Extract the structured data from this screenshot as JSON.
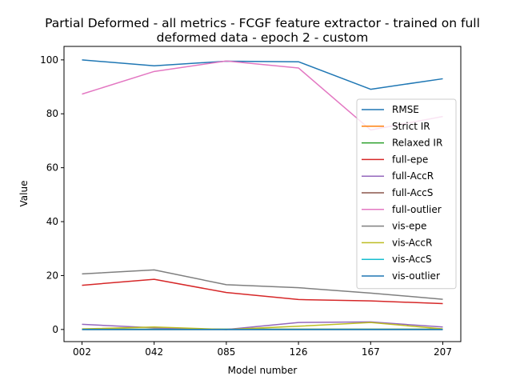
{
  "chart_data": {
    "type": "line",
    "title": [
      "Partial Deformed - all metrics - FCGF feature extractor -  trained on full",
      "deformed data -  epoch 2 - custom"
    ],
    "xlabel": "Model number",
    "ylabel": "Value",
    "categories": [
      "002",
      "042",
      "085",
      "126",
      "167",
      "207"
    ],
    "ylim": [
      -4.5,
      105
    ],
    "yticks": [
      0,
      20,
      40,
      60,
      80,
      100
    ],
    "grid": false,
    "legend_position": "right",
    "series": [
      {
        "name": "RMSE",
        "color": "#1f77b4",
        "values": [
          100.0,
          97.8,
          99.5,
          99.3,
          89.1,
          93.0
        ]
      },
      {
        "name": "Strict IR",
        "color": "#ff7f0e",
        "values": [
          0.05,
          0.05,
          0.05,
          0.05,
          0.05,
          0.05
        ]
      },
      {
        "name": "Relaxed IR",
        "color": "#2ca02c",
        "values": [
          0.1,
          0.1,
          0.1,
          0.1,
          0.1,
          0.1
        ]
      },
      {
        "name": "full-epe",
        "color": "#d62728",
        "values": [
          16.4,
          18.6,
          13.7,
          11.1,
          10.6,
          9.6
        ]
      },
      {
        "name": "full-AccR",
        "color": "#9467bd",
        "values": [
          1.9,
          0.6,
          0.0,
          2.6,
          2.8,
          0.9
        ]
      },
      {
        "name": "full-AccS",
        "color": "#8c564b",
        "values": [
          0.0,
          0.0,
          0.0,
          0.0,
          0.0,
          0.0
        ]
      },
      {
        "name": "full-outlier",
        "color": "#e377c2",
        "values": [
          87.3,
          95.7,
          99.6,
          97.0,
          74.0,
          79.0
        ]
      },
      {
        "name": "vis-epe",
        "color": "#7f7f7f",
        "values": [
          20.6,
          22.1,
          16.6,
          15.5,
          13.5,
          11.2
        ]
      },
      {
        "name": "vis-AccR",
        "color": "#bcbd22",
        "values": [
          0.2,
          0.9,
          0.0,
          1.2,
          2.6,
          0.2
        ]
      },
      {
        "name": "vis-AccS",
        "color": "#17becf",
        "values": [
          0.0,
          0.0,
          0.0,
          0.0,
          0.0,
          0.0
        ]
      },
      {
        "name": "vis-outlier",
        "color": "#1f77b4",
        "values": [
          0.0,
          0.0,
          0.0,
          0.0,
          0.0,
          0.0
        ]
      }
    ]
  }
}
